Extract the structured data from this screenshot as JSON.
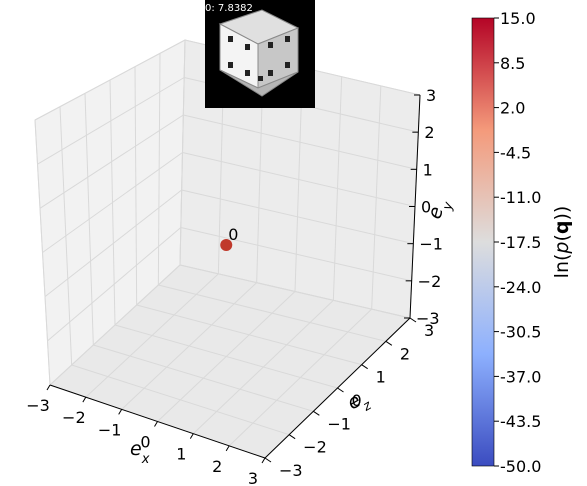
{
  "chart_data": {
    "type": "scatter",
    "projection": "3d",
    "x_axis": {
      "label_base": "e",
      "label_sub": "x",
      "ticks": [
        "−3",
        "−2",
        "−1",
        "0",
        "1",
        "2",
        "3"
      ],
      "range": [
        -3,
        3
      ]
    },
    "y_axis": {
      "label_base": "e",
      "label_sub": "y",
      "ticks": [
        "−3",
        "−2",
        "−1",
        "0",
        "1",
        "2",
        "3"
      ],
      "range": [
        -3,
        3
      ]
    },
    "z_axis": {
      "label_base": "e",
      "label_sub": "z",
      "ticks": [
        "−3",
        "−2",
        "−1",
        "0",
        "1",
        "2",
        "3"
      ],
      "range": [
        -3,
        3
      ]
    },
    "points": [
      {
        "label": "0",
        "x": 0.0,
        "y": 0.0,
        "z": 0.0,
        "value": 15.0,
        "color": "#c0392b"
      }
    ],
    "grid": true,
    "colorbar": {
      "label": "ln(p(q))",
      "label_pre": "ln(",
      "label_mid": "p",
      "label_bold": "q",
      "label_post": "))",
      "colormap": "coolwarm",
      "min": -50.0,
      "max": 15.0,
      "ticks": [
        "15.0",
        "8.5",
        "2.0",
        "-4.5",
        "-11.0",
        "-17.5",
        "-24.0",
        "-30.5",
        "-37.0",
        "-43.5",
        "-50.0"
      ]
    },
    "inset": {
      "title": "0: 7.8382",
      "description": "die"
    }
  },
  "colors": {
    "pane": "#f2f2f2",
    "grid": "#d9d9d9",
    "point": "#c0392b"
  }
}
